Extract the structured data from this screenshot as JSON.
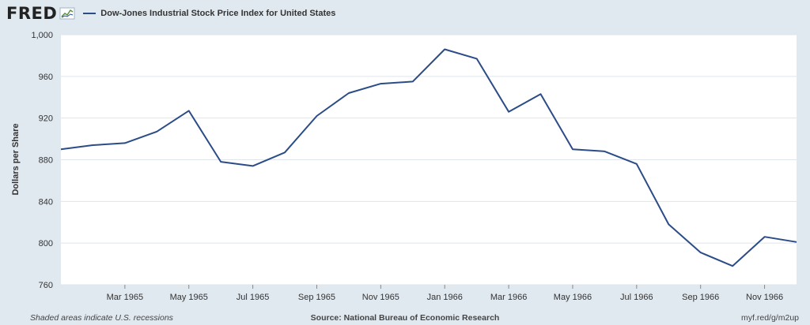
{
  "header": {
    "logo": "FRED",
    "legend_label": "Dow-Jones Industrial Stock Price Index for United States"
  },
  "footer": {
    "left": "Shaded areas indicate U.S. recessions",
    "center": "Source: National Bureau of Economic Research",
    "right": "myf.red/g/m2up"
  },
  "colors": {
    "line": "#2b4c87",
    "background": "#e1e9f0",
    "plot": "#ffffff",
    "grid": "#dfe5ea"
  },
  "icons": {
    "logo_icon": "fred-chart-icon"
  },
  "chart_data": {
    "type": "line",
    "title": "Dow-Jones Industrial Stock Price Index for United States",
    "ylabel": "Dollars per Share",
    "xlabel": "",
    "ylim": [
      760,
      1000
    ],
    "yticks": [
      760,
      800,
      840,
      880,
      920,
      960,
      1000
    ],
    "ytick_labels": [
      "760",
      "800",
      "840",
      "880",
      "920",
      "960",
      "1,000"
    ],
    "xtick_labels": [
      "Mar 1965",
      "May 1965",
      "Jul 1965",
      "Sep 1965",
      "Nov 1965",
      "Jan 1966",
      "Mar 1966",
      "May 1966",
      "Jul 1966",
      "Sep 1966",
      "Nov 1966"
    ],
    "grid": true,
    "series": [
      {
        "name": "Dow-Jones Industrial Stock Price Index for United States",
        "x": [
          "1965-01",
          "1965-02",
          "1965-03",
          "1965-04",
          "1965-05",
          "1965-06",
          "1965-07",
          "1965-08",
          "1965-09",
          "1965-10",
          "1965-11",
          "1965-12",
          "1966-01",
          "1966-02",
          "1966-03",
          "1966-04",
          "1966-05",
          "1966-06",
          "1966-07",
          "1966-08",
          "1966-09",
          "1966-10",
          "1966-11",
          "1966-12"
        ],
        "values": [
          890,
          894,
          896,
          907,
          927,
          878,
          874,
          887,
          922,
          944,
          953,
          955,
          986,
          977,
          926,
          943,
          890,
          888,
          876,
          818,
          791,
          778,
          806,
          801
        ]
      }
    ]
  }
}
